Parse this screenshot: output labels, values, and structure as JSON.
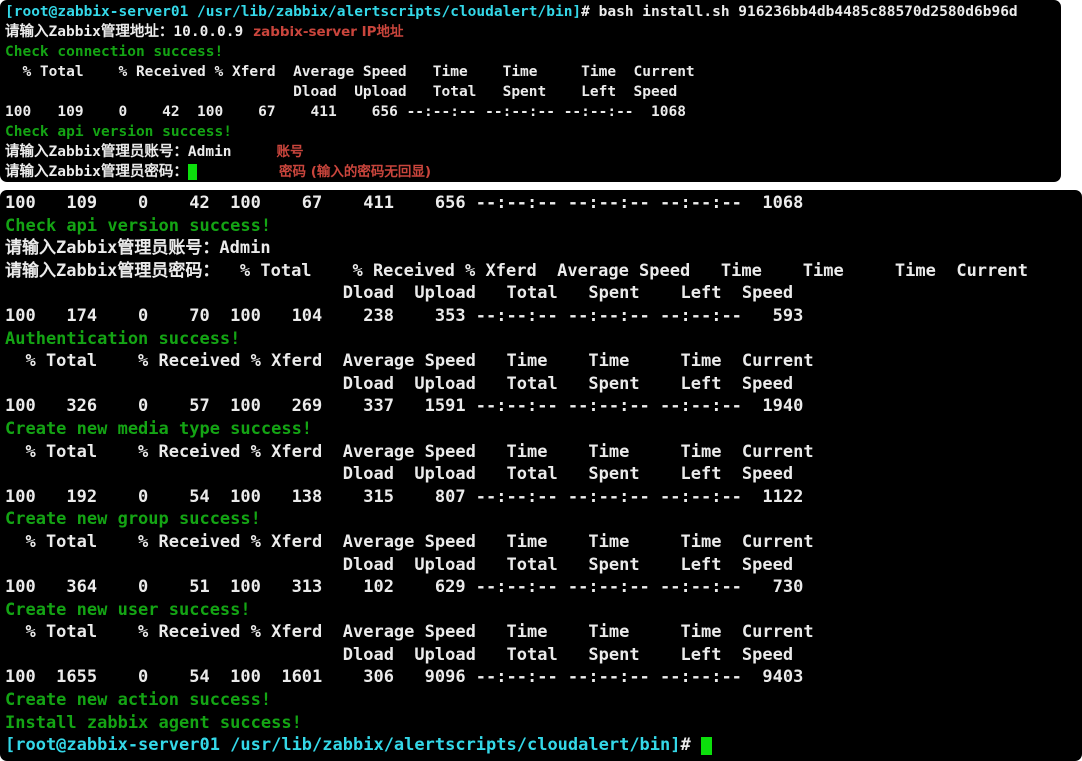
{
  "colors": {
    "page": "#ffffff",
    "bg": "#000000",
    "fg": "#ebebeb",
    "green": "#14a414",
    "cyan": "#34d8e8",
    "red": "#c9453c",
    "cursor": "#0cdf0c"
  },
  "terminals": [
    {
      "name": "terminal-top",
      "lines": [
        [
          {
            "t": "[root@zabbix-server01 /usr/lib/zabbix/alertscripts/cloudalert/bin]",
            "c": "cyan",
            "n": "shell-prompt"
          },
          {
            "t": "# bash install.sh 916236bb4db4485c88570d2580d6b96d",
            "c": "fg",
            "n": "command-text"
          }
        ],
        [
          {
            "t": "请输入Zabbix管理地址：",
            "c": "fg",
            "n": "input-prompt"
          },
          {
            "t": "10.0.0.9",
            "c": "fg",
            "n": "input-value"
          },
          {
            "t": "zabbix-server IP地址",
            "c": "annot",
            "ml": 10,
            "n": "annotation-ip"
          }
        ],
        [
          {
            "t": "Check connection success!",
            "c": "green",
            "n": "success-message"
          }
        ],
        [
          {
            "t": "  % Total    % Received % Xferd  Average Speed   Time    Time     Time  Current",
            "c": "fg",
            "n": "curl-header-row"
          }
        ],
        [
          {
            "t": "                                 Dload  Upload   Total   Spent    Left  Speed",
            "c": "fg",
            "n": "curl-header-row"
          }
        ],
        [
          {
            "t": "100   109    0    42  100    67    411    656 --:--:-- --:--:-- --:--:--  1068",
            "c": "fg",
            "n": "curl-progress-row"
          }
        ],
        [
          {
            "t": "Check api version success!",
            "c": "green",
            "n": "success-message"
          }
        ],
        [
          {
            "t": "请输入Zabbix管理员账号：",
            "c": "fg",
            "n": "input-prompt"
          },
          {
            "t": "Admin",
            "c": "fg",
            "n": "input-value"
          },
          {
            "t": "账号",
            "c": "annot",
            "ml": 45,
            "n": "annotation-account"
          }
        ],
        [
          {
            "t": "请输入Zabbix管理员密码：",
            "c": "fg",
            "n": "input-prompt"
          },
          {
            "c": "cursor",
            "n": "cursor"
          },
          {
            "t": "密码 (输入的密码无回显)",
            "c": "annot",
            "ml": 82,
            "n": "annotation-password"
          }
        ]
      ]
    },
    {
      "name": "terminal-bottom",
      "lines": [
        [
          {
            "t": "100   109    0    42  100    67    411    656 --:--:-- --:--:-- --:--:--  1068",
            "c": "fg",
            "n": "curl-progress-row"
          }
        ],
        [
          {
            "t": "Check api version success!",
            "c": "green",
            "n": "success-message"
          }
        ],
        [
          {
            "t": "请输入Zabbix管理员账号：",
            "c": "fg",
            "n": "input-prompt"
          },
          {
            "t": "Admin",
            "c": "fg",
            "n": "input-value"
          }
        ],
        [
          {
            "t": "请输入Zabbix管理员密码：",
            "c": "fg",
            "n": "input-prompt"
          },
          {
            "t": "  % Total    % Received % Xferd  Average Speed   Time    Time     Time  Current",
            "c": "fg",
            "n": "curl-header-row"
          }
        ],
        [
          {
            "t": "                                 Dload  Upload   Total   Spent    Left  Speed",
            "c": "fg",
            "n": "curl-header-row"
          }
        ],
        [
          {
            "t": "100   174    0    70  100   104    238    353 --:--:-- --:--:-- --:--:--   593",
            "c": "fg",
            "n": "curl-progress-row"
          }
        ],
        [
          {
            "t": "Authentication success!",
            "c": "green",
            "n": "success-message"
          }
        ],
        [
          {
            "t": "  % Total    % Received % Xferd  Average Speed   Time    Time     Time  Current",
            "c": "fg",
            "n": "curl-header-row"
          }
        ],
        [
          {
            "t": "                                 Dload  Upload   Total   Spent    Left  Speed",
            "c": "fg",
            "n": "curl-header-row"
          }
        ],
        [
          {
            "t": "100   326    0    57  100   269    337   1591 --:--:-- --:--:-- --:--:--  1940",
            "c": "fg",
            "n": "curl-progress-row"
          }
        ],
        [
          {
            "t": "Create new media type success!",
            "c": "green",
            "n": "success-message"
          }
        ],
        [
          {
            "t": "  % Total    % Received % Xferd  Average Speed   Time    Time     Time  Current",
            "c": "fg",
            "n": "curl-header-row"
          }
        ],
        [
          {
            "t": "                                 Dload  Upload   Total   Spent    Left  Speed",
            "c": "fg",
            "n": "curl-header-row"
          }
        ],
        [
          {
            "t": "100   192    0    54  100   138    315    807 --:--:-- --:--:-- --:--:--  1122",
            "c": "fg",
            "n": "curl-progress-row"
          }
        ],
        [
          {
            "t": "Create new group success!",
            "c": "green",
            "n": "success-message"
          }
        ],
        [
          {
            "t": "  % Total    % Received % Xferd  Average Speed   Time    Time     Time  Current",
            "c": "fg",
            "n": "curl-header-row"
          }
        ],
        [
          {
            "t": "                                 Dload  Upload   Total   Spent    Left  Speed",
            "c": "fg",
            "n": "curl-header-row"
          }
        ],
        [
          {
            "t": "100   364    0    51  100   313    102    629 --:--:-- --:--:-- --:--:--   730",
            "c": "fg",
            "n": "curl-progress-row"
          }
        ],
        [
          {
            "t": "Create new user success!",
            "c": "green",
            "n": "success-message"
          }
        ],
        [
          {
            "t": "  % Total    % Received % Xferd  Average Speed   Time    Time     Time  Current",
            "c": "fg",
            "n": "curl-header-row"
          }
        ],
        [
          {
            "t": "                                 Dload  Upload   Total   Spent    Left  Speed",
            "c": "fg",
            "n": "curl-header-row"
          }
        ],
        [
          {
            "t": "100  1655    0    54  100  1601    306   9096 --:--:-- --:--:-- --:--:--  9403",
            "c": "fg",
            "n": "curl-progress-row"
          }
        ],
        [
          {
            "t": "Create new action success!",
            "c": "green",
            "n": "success-message"
          }
        ],
        [
          {
            "t": "Install zabbix agent success!",
            "c": "green",
            "n": "success-message"
          }
        ],
        [
          {
            "t": "[root@zabbix-server01 /usr/lib/zabbix/alertscripts/cloudalert/bin]",
            "c": "cyan",
            "n": "shell-prompt"
          },
          {
            "t": "# ",
            "c": "fg",
            "n": "prompt-hash"
          },
          {
            "c": "cursor",
            "n": "cursor"
          }
        ]
      ]
    }
  ]
}
